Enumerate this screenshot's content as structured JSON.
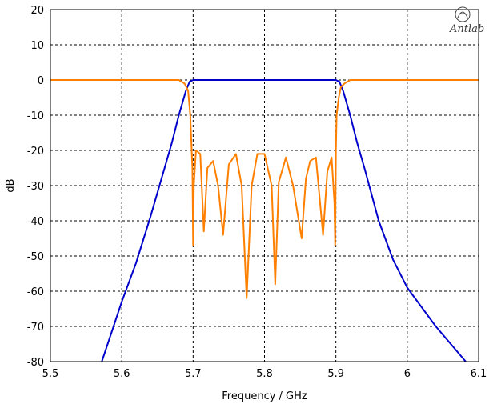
{
  "chart_data": {
    "type": "line",
    "title": "",
    "xlabel": "Frequency / GHz",
    "ylabel": "dB",
    "xlim": [
      5.5,
      6.1
    ],
    "ylim": [
      -80,
      20
    ],
    "xticks": [
      "5.5",
      "5.6",
      "5.7",
      "5.8",
      "5.9",
      "6",
      "6.1"
    ],
    "yticks": [
      "20",
      "10",
      "0",
      "-10",
      "-20",
      "-30",
      "-40",
      "-50",
      "-60",
      "-70",
      "-80"
    ],
    "grid": true,
    "logo_text": "Antlab",
    "series": [
      {
        "name": "",
        "color": "#0000cc",
        "x": [
          5.572,
          5.6,
          5.62,
          5.64,
          5.66,
          5.67,
          5.68,
          5.69,
          5.695,
          5.7,
          5.8,
          5.9,
          5.905,
          5.91,
          5.92,
          5.93,
          5.94,
          5.96,
          5.98,
          6.0,
          6.04,
          6.082
        ],
        "y": [
          -80,
          -63,
          -52,
          -39,
          -25,
          -18,
          -10,
          -3,
          -0.5,
          0,
          0,
          0,
          -0.5,
          -3,
          -10,
          -18,
          -25,
          -40,
          -51,
          -59,
          -70,
          -80
        ]
      },
      {
        "name": "",
        "color": "#ff8000",
        "x": [
          5.5,
          5.68,
          5.688,
          5.693,
          5.696,
          5.699,
          5.7,
          5.701,
          5.704,
          5.71,
          5.715,
          5.72,
          5.728,
          5.735,
          5.742,
          5.75,
          5.76,
          5.768,
          5.775,
          5.782,
          5.79,
          5.8,
          5.81,
          5.815,
          5.82,
          5.83,
          5.84,
          5.852,
          5.858,
          5.864,
          5.872,
          5.882,
          5.888,
          5.894,
          5.898,
          5.899,
          5.9,
          5.901,
          5.904,
          5.907,
          5.912,
          5.92,
          6.1
        ],
        "y": [
          0,
          0,
          -1,
          -3,
          -10,
          -25,
          -47,
          -30,
          -20,
          -21,
          -43,
          -25,
          -23,
          -30,
          -44,
          -24,
          -21,
          -30,
          -62,
          -30,
          -21,
          -21,
          -30,
          -58,
          -29,
          -22,
          -30,
          -45,
          -28,
          -23,
          -22,
          -44,
          -26,
          -22,
          -35,
          -47,
          -20,
          -10,
          -5,
          -2,
          -1,
          0,
          0
        ]
      }
    ]
  }
}
